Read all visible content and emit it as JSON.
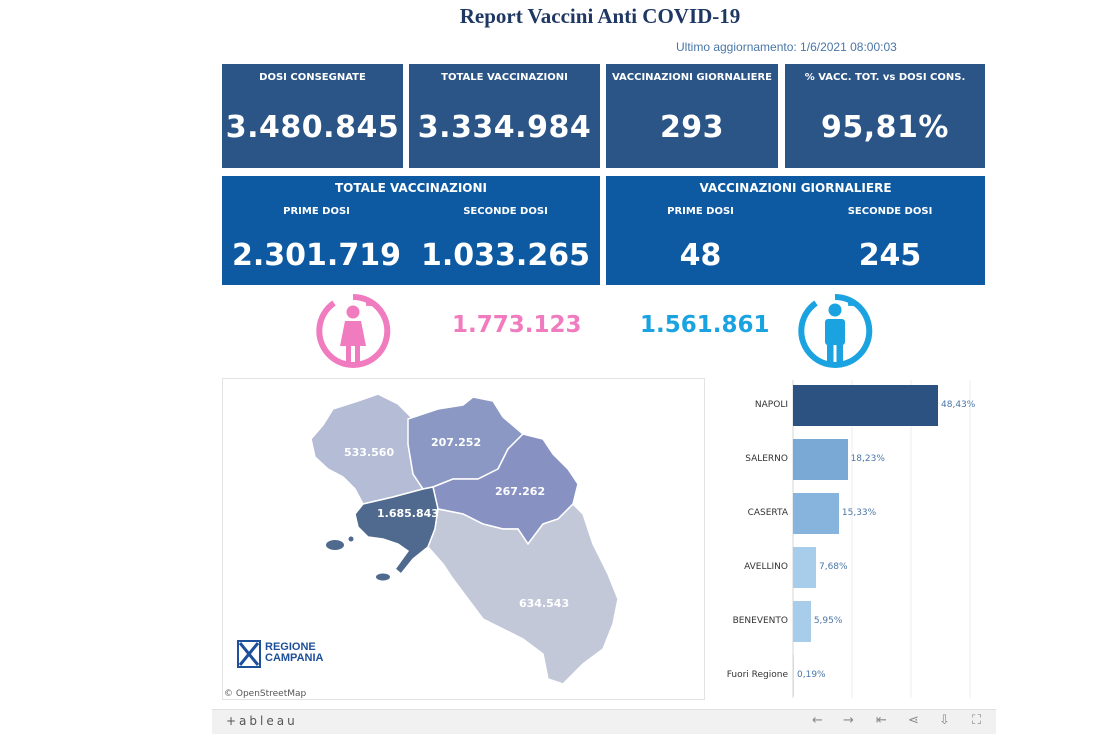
{
  "header": {
    "title": "Report Vaccini Anti COVID-19",
    "updated": "Ultimo aggiornamento: 1/6/2021  08:00:03"
  },
  "kpis": [
    {
      "label": "DOSI  CONSEGNATE",
      "value": "3.480.845"
    },
    {
      "label": "TOTALE VACCINAZIONI",
      "value": "3.334.984"
    },
    {
      "label": "VACCINAZIONI GIORNALIERE",
      "value": "293"
    },
    {
      "label": "% VACC. TOT. vs DOSI CONS.",
      "value": "95,81%"
    }
  ],
  "totale_panel": {
    "title": "TOTALE VACCINAZIONI",
    "prime_label": "PRIME DOSI",
    "prime_value": "2.301.719",
    "seconde_label": "SECONDE DOSI",
    "seconde_value": "1.033.265"
  },
  "giornaliere_panel": {
    "title": "VACCINAZIONI GIORNALIERE",
    "prime_label": "PRIME DOSI",
    "prime_value": "48",
    "seconde_label": "SECONDE DOSI",
    "seconde_value": "245"
  },
  "gender": {
    "female_value": "1.773.123",
    "female_color": "#f07cbf",
    "male_value": "1.561.861",
    "male_color": "#1aa3e0",
    "female_icon": "female-icon",
    "male_icon": "male-icon"
  },
  "map": {
    "labels": {
      "caserta": "533.560",
      "benevento": "207.252",
      "avellino": "267.262",
      "napoli": "1.685.843",
      "salerno": "634.543"
    },
    "attribution": "© OpenStreetMap",
    "logo_line1": "REGIONE",
    "logo_line2": "CAMPANIA"
  },
  "chart_data": {
    "type": "bar",
    "orientation": "horizontal",
    "categories": [
      "NAPOLI",
      "SALERNO",
      "CASERTA",
      "AVELLINO",
      "BENEVENTO",
      "Fuori Regione"
    ],
    "values": [
      48.43,
      18.23,
      15.33,
      7.68,
      5.95,
      0.19
    ],
    "value_labels": [
      "48,43%",
      "18,23%",
      "15,33%",
      "7,68%",
      "5,95%",
      "0,19%"
    ],
    "colors": [
      "#2c5281",
      "#79a9d4",
      "#86b4dc",
      "#a7cdea",
      "#a7cdea",
      "#c9def0"
    ],
    "grid": true
  },
  "toolbar": {
    "brand": "+ableau",
    "icons": [
      "undo-icon",
      "redo-icon",
      "revert-icon",
      "share-icon",
      "download-icon",
      "fullscreen-icon"
    ]
  }
}
